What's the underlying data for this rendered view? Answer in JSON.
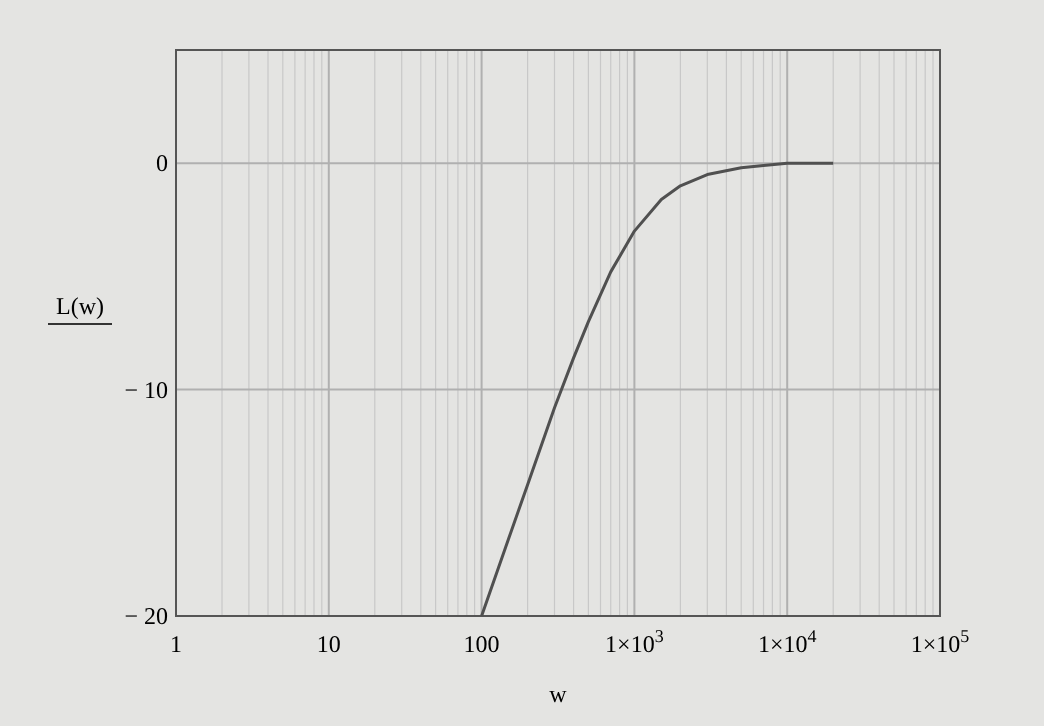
{
  "chart_data": {
    "type": "line",
    "xlabel": "w",
    "ylabel": "L(w)",
    "x": [
      100,
      150,
      200,
      300,
      400,
      500,
      700,
      1000,
      1500,
      2000,
      3000,
      5000,
      7000,
      10000,
      20000
    ],
    "series": [
      {
        "color": "#505050",
        "values": [
          -20,
          -16.6,
          -14.2,
          -10.8,
          -8.6,
          -7,
          -4.8,
          -3,
          -1.6,
          -1,
          -0.5,
          -0.2,
          -0.1,
          0,
          0
        ]
      }
    ],
    "log": "x",
    "xlim": [
      1,
      100000
    ],
    "ylim": [
      -20,
      5
    ],
    "xticks": [
      1,
      10,
      100,
      {
        "value": 1000,
        "label": "1×10$^{3}$"
      },
      {
        "value": 10000,
        "label": "1×10$^{4}$"
      },
      {
        "value": 100000,
        "label": "1×10$^{5}$"
      }
    ],
    "yticks": [
      {
        "value": -20,
        "label": "− 20"
      },
      {
        "value": -10,
        "label": "− 10"
      },
      0
    ],
    "grid": true,
    "line_style": "solid",
    "marker": "none"
  }
}
